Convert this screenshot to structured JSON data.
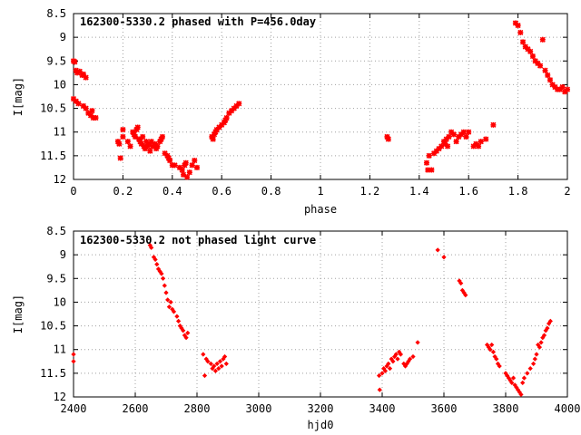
{
  "chart_data": [
    {
      "type": "scatter",
      "title": "162300-5330.2 phased with P=456.0day",
      "xlabel": "phase",
      "ylabel": "I[mag]",
      "xlim": [
        0,
        2
      ],
      "ylim": [
        12,
        8.5
      ],
      "y_inverted": true,
      "grid": true,
      "marker": "plus-x",
      "marker_color": "#ff0000",
      "x_ticks": [
        "0",
        "0.2",
        "0.4",
        "0.6",
        "0.8",
        "1",
        "1.2",
        "1.4",
        "1.6",
        "1.8",
        "2"
      ],
      "y_ticks": [
        "8.5",
        "9",
        "9.5",
        "10",
        "10.5",
        "11",
        "11.5",
        "12"
      ],
      "series": [
        {
          "points": [
            [
              0.0,
              9.5
            ],
            [
              0.005,
              9.52
            ],
            [
              0.01,
              9.7
            ],
            [
              0.015,
              9.75
            ],
            [
              0.025,
              9.72
            ],
            [
              0.035,
              9.8
            ],
            [
              0.04,
              9.78
            ],
            [
              0.05,
              9.85
            ],
            [
              0.0,
              10.3
            ],
            [
              0.01,
              10.35
            ],
            [
              0.02,
              10.4
            ],
            [
              0.04,
              10.45
            ],
            [
              0.05,
              10.5
            ],
            [
              0.06,
              10.6
            ],
            [
              0.07,
              10.65
            ],
            [
              0.08,
              10.7
            ],
            [
              0.09,
              10.7
            ],
            [
              0.075,
              10.55
            ],
            [
              0.18,
              11.2
            ],
            [
              0.185,
              11.25
            ],
            [
              0.19,
              11.55
            ],
            [
              0.2,
              11.1
            ],
            [
              0.2,
              10.95
            ],
            [
              0.22,
              11.2
            ],
            [
              0.23,
              11.3
            ],
            [
              0.24,
              11.0
            ],
            [
              0.245,
              11.05
            ],
            [
              0.25,
              11.1
            ],
            [
              0.255,
              10.95
            ],
            [
              0.26,
              10.9
            ],
            [
              0.265,
              11.15
            ],
            [
              0.27,
              11.2
            ],
            [
              0.275,
              11.25
            ],
            [
              0.28,
              11.1
            ],
            [
              0.285,
              11.3
            ],
            [
              0.29,
              11.35
            ],
            [
              0.295,
              11.2
            ],
            [
              0.3,
              11.3
            ],
            [
              0.305,
              11.25
            ],
            [
              0.31,
              11.4
            ],
            [
              0.315,
              11.2
            ],
            [
              0.32,
              11.3
            ],
            [
              0.33,
              11.25
            ],
            [
              0.335,
              11.35
            ],
            [
              0.34,
              11.3
            ],
            [
              0.35,
              11.2
            ],
            [
              0.355,
              11.15
            ],
            [
              0.36,
              11.1
            ],
            [
              0.37,
              11.45
            ],
            [
              0.38,
              11.5
            ],
            [
              0.385,
              11.55
            ],
            [
              0.39,
              11.6
            ],
            [
              0.4,
              11.7
            ],
            [
              0.41,
              11.7
            ],
            [
              0.43,
              11.75
            ],
            [
              0.44,
              11.8
            ],
            [
              0.445,
              11.9
            ],
            [
              0.45,
              11.7
            ],
            [
              0.455,
              11.65
            ],
            [
              0.46,
              11.95
            ],
            [
              0.47,
              11.85
            ],
            [
              0.48,
              11.7
            ],
            [
              0.49,
              11.6
            ],
            [
              0.5,
              11.75
            ],
            [
              0.56,
              11.1
            ],
            [
              0.565,
              11.15
            ],
            [
              0.57,
              11.05
            ],
            [
              0.575,
              11.0
            ],
            [
              0.58,
              10.95
            ],
            [
              0.59,
              10.9
            ],
            [
              0.6,
              10.85
            ],
            [
              0.61,
              10.8
            ],
            [
              0.615,
              10.75
            ],
            [
              0.62,
              10.7
            ],
            [
              0.63,
              10.6
            ],
            [
              0.64,
              10.55
            ],
            [
              0.65,
              10.5
            ],
            [
              0.66,
              10.45
            ],
            [
              0.67,
              10.4
            ],
            [
              1.27,
              11.1
            ],
            [
              1.275,
              11.15
            ],
            [
              1.43,
              11.65
            ],
            [
              1.435,
              11.8
            ],
            [
              1.44,
              11.5
            ],
            [
              1.45,
              11.8
            ],
            [
              1.46,
              11.45
            ],
            [
              1.47,
              11.4
            ],
            [
              1.48,
              11.35
            ],
            [
              1.49,
              11.3
            ],
            [
              1.5,
              11.2
            ],
            [
              1.505,
              11.25
            ],
            [
              1.51,
              11.15
            ],
            [
              1.515,
              11.3
            ],
            [
              1.52,
              11.1
            ],
            [
              1.53,
              11.0
            ],
            [
              1.54,
              11.05
            ],
            [
              1.55,
              11.2
            ],
            [
              1.56,
              11.1
            ],
            [
              1.57,
              11.05
            ],
            [
              1.58,
              11.0
            ],
            [
              1.59,
              11.1
            ],
            [
              1.6,
              11.0
            ],
            [
              1.62,
              11.3
            ],
            [
              1.63,
              11.25
            ],
            [
              1.64,
              11.3
            ],
            [
              1.65,
              11.2
            ],
            [
              1.67,
              11.15
            ],
            [
              1.7,
              10.85
            ],
            [
              1.79,
              8.7
            ],
            [
              1.8,
              8.75
            ],
            [
              1.81,
              8.9
            ],
            [
              1.82,
              9.1
            ],
            [
              1.83,
              9.2
            ],
            [
              1.84,
              9.25
            ],
            [
              1.85,
              9.3
            ],
            [
              1.86,
              9.4
            ],
            [
              1.87,
              9.5
            ],
            [
              1.88,
              9.55
            ],
            [
              1.89,
              9.6
            ],
            [
              1.9,
              9.05
            ],
            [
              1.91,
              9.7
            ],
            [
              1.92,
              9.8
            ],
            [
              1.93,
              9.9
            ],
            [
              1.94,
              10.0
            ],
            [
              1.95,
              10.05
            ],
            [
              1.96,
              10.1
            ],
            [
              1.97,
              10.1
            ],
            [
              1.98,
              10.05
            ],
            [
              1.99,
              10.15
            ],
            [
              2.0,
              10.1
            ]
          ]
        }
      ]
    },
    {
      "type": "scatter",
      "title": "162300-5330.2 not phased light curve",
      "xlabel": "hjd0",
      "ylabel": "I[mag]",
      "xlim": [
        2400,
        4000
      ],
      "ylim": [
        12,
        8.5
      ],
      "y_inverted": true,
      "grid": true,
      "marker": "diamond",
      "marker_color": "#ff0000",
      "x_ticks": [
        "2400",
        "2600",
        "2800",
        "3000",
        "3200",
        "3400",
        "3600",
        "3800",
        "4000"
      ],
      "y_ticks": [
        "8.5",
        "9",
        "9.5",
        "10",
        "10.5",
        "11",
        "11.5",
        "12"
      ],
      "series": [
        {
          "points": [
            [
              2400,
              11.1
            ],
            [
              2400,
              11.25
            ],
            [
              2648,
              8.8
            ],
            [
              2652,
              8.85
            ],
            [
              2660,
              9.05
            ],
            [
              2665,
              9.1
            ],
            [
              2670,
              9.2
            ],
            [
              2675,
              9.3
            ],
            [
              2680,
              9.35
            ],
            [
              2685,
              9.4
            ],
            [
              2690,
              9.5
            ],
            [
              2695,
              9.65
            ],
            [
              2700,
              9.8
            ],
            [
              2705,
              9.95
            ],
            [
              2710,
              10.1
            ],
            [
              2715,
              10.0
            ],
            [
              2720,
              10.15
            ],
            [
              2725,
              10.2
            ],
            [
              2735,
              10.3
            ],
            [
              2740,
              10.4
            ],
            [
              2745,
              10.5
            ],
            [
              2750,
              10.55
            ],
            [
              2755,
              10.6
            ],
            [
              2760,
              10.7
            ],
            [
              2765,
              10.75
            ],
            [
              2770,
              10.65
            ],
            [
              2820,
              11.1
            ],
            [
              2825,
              11.55
            ],
            [
              2830,
              11.2
            ],
            [
              2835,
              11.25
            ],
            [
              2845,
              11.3
            ],
            [
              2850,
              11.4
            ],
            [
              2855,
              11.35
            ],
            [
              2860,
              11.45
            ],
            [
              2865,
              11.3
            ],
            [
              2870,
              11.4
            ],
            [
              2875,
              11.25
            ],
            [
              2880,
              11.35
            ],
            [
              2885,
              11.2
            ],
            [
              2890,
              11.15
            ],
            [
              2895,
              11.3
            ],
            [
              3390,
              11.55
            ],
            [
              3392,
              11.85
            ],
            [
              3400,
              11.5
            ],
            [
              3405,
              11.4
            ],
            [
              3410,
              11.45
            ],
            [
              3415,
              11.35
            ],
            [
              3420,
              11.3
            ],
            [
              3425,
              11.4
            ],
            [
              3430,
              11.2
            ],
            [
              3435,
              11.25
            ],
            [
              3440,
              11.15
            ],
            [
              3445,
              11.1
            ],
            [
              3450,
              11.2
            ],
            [
              3455,
              11.05
            ],
            [
              3460,
              11.1
            ],
            [
              3470,
              11.3
            ],
            [
              3475,
              11.35
            ],
            [
              3480,
              11.3
            ],
            [
              3485,
              11.25
            ],
            [
              3490,
              11.2
            ],
            [
              3500,
              11.15
            ],
            [
              3515,
              10.85
            ],
            [
              3580,
              8.9
            ],
            [
              3600,
              9.05
            ],
            [
              3650,
              9.55
            ],
            [
              3655,
              9.6
            ],
            [
              3660,
              9.75
            ],
            [
              3665,
              9.8
            ],
            [
              3670,
              9.85
            ],
            [
              3740,
              10.9
            ],
            [
              3745,
              10.95
            ],
            [
              3750,
              11.0
            ],
            [
              3755,
              10.9
            ],
            [
              3760,
              11.05
            ],
            [
              3765,
              11.15
            ],
            [
              3770,
              11.2
            ],
            [
              3775,
              11.3
            ],
            [
              3780,
              11.35
            ],
            [
              3800,
              11.5
            ],
            [
              3805,
              11.55
            ],
            [
              3810,
              11.6
            ],
            [
              3815,
              11.65
            ],
            [
              3820,
              11.7
            ],
            [
              3825,
              11.6
            ],
            [
              3830,
              11.75
            ],
            [
              3835,
              11.8
            ],
            [
              3840,
              11.85
            ],
            [
              3845,
              11.9
            ],
            [
              3850,
              11.95
            ],
            [
              3855,
              11.7
            ],
            [
              3860,
              11.6
            ],
            [
              3870,
              11.5
            ],
            [
              3880,
              11.4
            ],
            [
              3890,
              11.3
            ],
            [
              3895,
              11.2
            ],
            [
              3900,
              11.1
            ],
            [
              3905,
              10.9
            ],
            [
              3910,
              10.95
            ],
            [
              3915,
              10.85
            ],
            [
              3920,
              10.75
            ],
            [
              3925,
              10.7
            ],
            [
              3930,
              10.6
            ],
            [
              3935,
              10.55
            ],
            [
              3940,
              10.45
            ],
            [
              3945,
              10.4
            ]
          ]
        }
      ]
    }
  ]
}
